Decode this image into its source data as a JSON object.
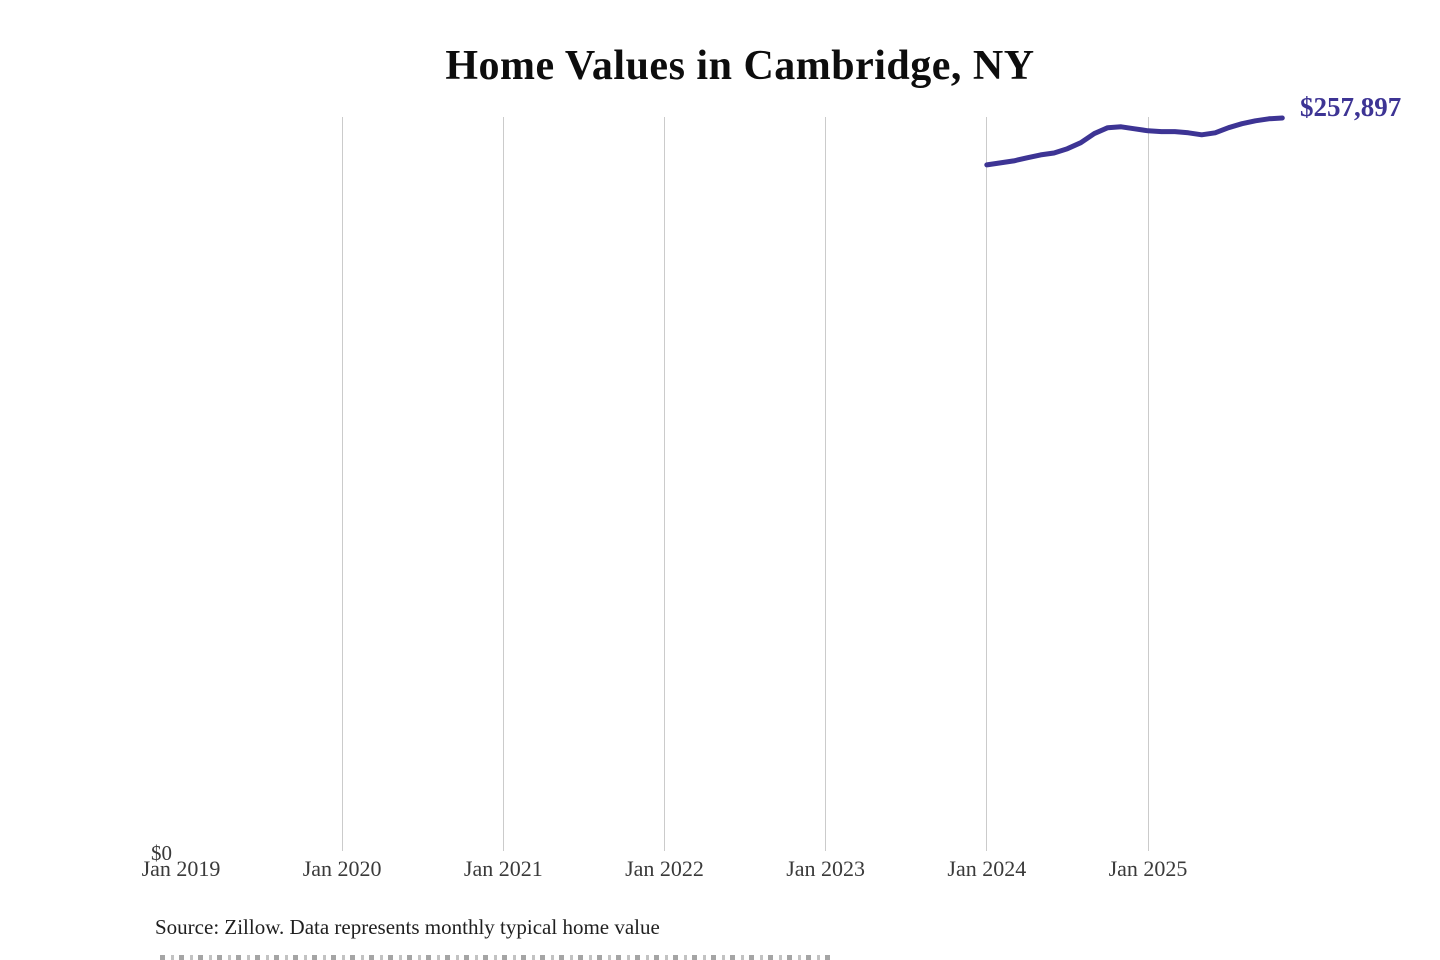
{
  "page": {
    "background": "#ffffff"
  },
  "colors": {
    "line": "#3d3494",
    "end_label": "#3d3494",
    "gridline": "#cbcbcb",
    "axis_text": "#3a3a3a",
    "title_text": "#0d0d0d",
    "source_text": "#1f1f1f"
  },
  "chart_data": {
    "type": "line",
    "title": "Home Values in Cambridge, NY",
    "end_label": "$257,897",
    "source_note": "Source: Zillow. Data represents monthly typical home value",
    "legend": "none",
    "grid": "vertical-only",
    "y_axis": {
      "min": 0,
      "min_label": "$0",
      "max": 257897,
      "tick_labels_shown": [
        "$0"
      ]
    },
    "x_ticks": [
      {
        "label": "Jan 2019",
        "gridline": false
      },
      {
        "label": "Jan 2020",
        "gridline": true
      },
      {
        "label": "Jan 2021",
        "gridline": true
      },
      {
        "label": "Jan 2022",
        "gridline": true
      },
      {
        "label": "Jan 2023",
        "gridline": true
      },
      {
        "label": "Jan 2024",
        "gridline": true
      },
      {
        "label": "Jan 2025",
        "gridline": true
      }
    ],
    "series": [
      {
        "name": "Monthly typical home value",
        "color": "#3d3494",
        "points": [
          {
            "month": "2024-01",
            "value": 241400
          },
          {
            "month": "2024-02",
            "value": 242100
          },
          {
            "month": "2024-03",
            "value": 242800
          },
          {
            "month": "2024-04",
            "value": 243900
          },
          {
            "month": "2024-05",
            "value": 244900
          },
          {
            "month": "2024-06",
            "value": 245600
          },
          {
            "month": "2024-07",
            "value": 247100
          },
          {
            "month": "2024-08",
            "value": 249200
          },
          {
            "month": "2024-09",
            "value": 252400
          },
          {
            "month": "2024-10",
            "value": 254500
          },
          {
            "month": "2024-11",
            "value": 254800
          },
          {
            "month": "2024-12",
            "value": 254100
          },
          {
            "month": "2025-01",
            "value": 253400
          },
          {
            "month": "2025-02",
            "value": 253100
          },
          {
            "month": "2025-03",
            "value": 253100
          },
          {
            "month": "2025-04",
            "value": 252700
          },
          {
            "month": "2025-05",
            "value": 252000
          },
          {
            "month": "2025-06",
            "value": 252700
          },
          {
            "month": "2025-07",
            "value": 254500
          },
          {
            "month": "2025-08",
            "value": 255900
          },
          {
            "month": "2025-09",
            "value": 256900
          },
          {
            "month": "2025-10",
            "value": 257600
          },
          {
            "month": "2025-11",
            "value": 257897
          }
        ]
      }
    ]
  }
}
